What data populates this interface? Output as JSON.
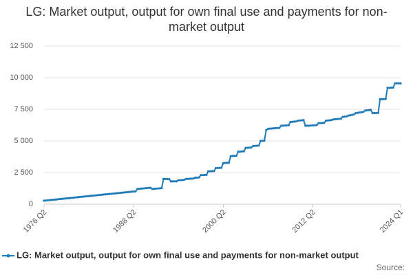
{
  "chart_data": {
    "type": "line",
    "title": "LG: Market output, output for own final use and payments for non-market output",
    "source": "Source:",
    "categories": [
      "1976 Q2",
      null,
      null,
      null,
      null,
      null,
      null,
      null,
      null,
      null,
      null,
      null,
      null,
      null,
      null,
      null,
      null,
      null,
      null,
      null,
      null,
      null,
      null,
      null,
      null,
      null,
      null,
      null,
      null,
      null,
      null,
      null,
      null,
      null,
      null,
      null,
      null,
      null,
      null,
      null,
      null,
      null,
      null,
      null,
      null,
      null,
      null,
      null,
      "1988 Q2",
      null,
      null,
      null,
      null,
      null,
      null,
      null,
      null,
      null,
      null,
      null,
      null,
      null,
      null,
      null,
      null,
      null,
      null,
      null,
      null,
      null,
      null,
      null,
      null,
      null,
      null,
      null,
      null,
      null,
      null,
      null,
      null,
      null,
      null,
      null,
      null,
      null,
      null,
      null,
      null,
      null,
      null,
      null,
      null,
      null,
      null,
      null,
      "2000 Q2",
      null,
      null,
      null,
      null,
      null,
      null,
      null,
      null,
      null,
      null,
      null,
      null,
      null,
      null,
      null,
      null,
      null,
      null,
      null,
      null,
      null,
      null,
      null,
      null,
      null,
      null,
      null,
      null,
      null,
      null,
      null,
      null,
      null,
      null,
      null,
      null,
      null,
      null,
      null,
      null,
      null,
      null,
      null,
      null,
      null,
      null,
      null,
      "2012 Q2",
      null,
      null,
      null,
      null,
      null,
      null,
      null,
      null,
      null,
      null,
      null,
      null,
      null,
      null,
      null,
      null,
      null,
      null,
      null,
      null,
      null,
      null,
      null,
      null,
      null,
      null,
      null,
      null,
      null,
      null,
      null,
      null,
      null,
      null,
      null,
      null,
      null,
      null,
      null,
      null,
      null,
      null,
      null,
      null,
      null,
      null,
      "2024 Q1"
    ],
    "series": [
      {
        "name": "LG: Market output, output for own final use and payments for non-market output",
        "color": "#1f7ab8",
        "values": [
          280,
          290,
          310,
          320,
          340,
          350,
          370,
          380,
          400,
          410,
          430,
          440,
          460,
          470,
          490,
          500,
          520,
          540,
          550,
          570,
          580,
          600,
          610,
          630,
          640,
          660,
          670,
          690,
          700,
          720,
          730,
          750,
          760,
          780,
          790,
          810,
          820,
          840,
          850,
          870,
          880,
          900,
          910,
          930,
          940,
          960,
          970,
          990,
          1000,
          1010,
          1200,
          1210,
          1230,
          1240,
          1260,
          1270,
          1290,
          1300,
          1200,
          1210,
          1230,
          1240,
          1260,
          1270,
          2000,
          1990,
          1990,
          1980,
          1800,
          1800,
          1810,
          1810,
          1900,
          1900,
          1910,
          1920,
          2000,
          2000,
          2010,
          2020,
          2030,
          2100,
          2100,
          2110,
          2300,
          2300,
          2310,
          2320,
          2600,
          2600,
          2610,
          2620,
          2850,
          2860,
          2870,
          2880,
          3250,
          3260,
          3270,
          3280,
          3800,
          3810,
          3820,
          3830,
          4150,
          4160,
          4170,
          4180,
          4450,
          4460,
          4470,
          4480,
          4600,
          4610,
          4620,
          4630,
          5000,
          5010,
          5020,
          5850,
          5950,
          5970,
          5980,
          6000,
          6010,
          6020,
          6030,
          6200,
          6210,
          6220,
          6230,
          6240,
          6500,
          6510,
          6530,
          6540,
          6600,
          6620,
          6630,
          6650,
          6200,
          6210,
          6200,
          6220,
          6230,
          6240,
          6250,
          6400,
          6410,
          6420,
          6440,
          6600,
          6620,
          6630,
          6650,
          6700,
          6720,
          6730,
          6750,
          6760,
          6900,
          6920,
          6940,
          7000,
          7030,
          7060,
          7100,
          7200,
          7220,
          7250,
          7270,
          7300,
          7400,
          7420,
          7440,
          7460,
          7200,
          7200,
          7210,
          7220,
          8300,
          8300,
          8310,
          8320,
          9200,
          9200,
          9210,
          9220,
          9550,
          9560,
          9560,
          9550
        ]
      }
    ],
    "ylim": [
      0,
      12500
    ],
    "yticks": [
      0,
      {
        "value": 2500,
        "label": "2 500"
      },
      {
        "value": 5000,
        "label": "5 000"
      },
      {
        "value": 7500,
        "label": "7 500"
      },
      {
        "value": 10000,
        "label": "10 000"
      },
      {
        "value": 12500,
        "label": "12 500"
      }
    ],
    "grid": true
  }
}
